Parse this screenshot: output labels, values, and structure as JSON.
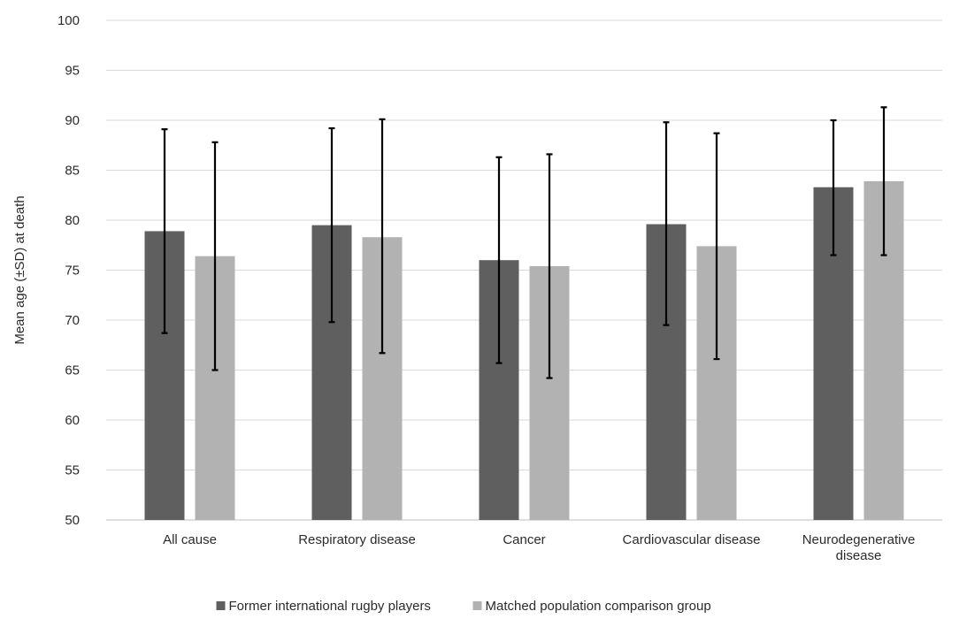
{
  "chart_data": {
    "type": "bar",
    "title": "",
    "xlabel": "",
    "ylabel": "Mean age (±SD) at death",
    "ylim": [
      50,
      100
    ],
    "ytick_step": 5,
    "grid": true,
    "legend_position": "bottom",
    "categories": [
      [
        "All cause"
      ],
      [
        "Respiratory disease"
      ],
      [
        "Cancer"
      ],
      [
        "Cardiovascular disease"
      ],
      [
        "Neurodegenerative",
        "disease"
      ]
    ],
    "series": [
      {
        "name": "Former international rugby players",
        "color": "#5f5f5f",
        "values": [
          78.9,
          79.5,
          76.0,
          79.6,
          83.3
        ],
        "error_low": [
          68.7,
          69.8,
          65.7,
          69.5,
          76.5
        ],
        "error_high": [
          89.1,
          89.2,
          86.3,
          89.8,
          90.0
        ]
      },
      {
        "name": "Matched population comparison group",
        "color": "#b2b2b2",
        "values": [
          76.4,
          78.3,
          75.4,
          77.4,
          83.9
        ],
        "error_low": [
          65.0,
          66.7,
          64.2,
          66.1,
          76.5
        ],
        "error_high": [
          87.8,
          90.1,
          86.6,
          88.7,
          91.3
        ]
      }
    ]
  }
}
